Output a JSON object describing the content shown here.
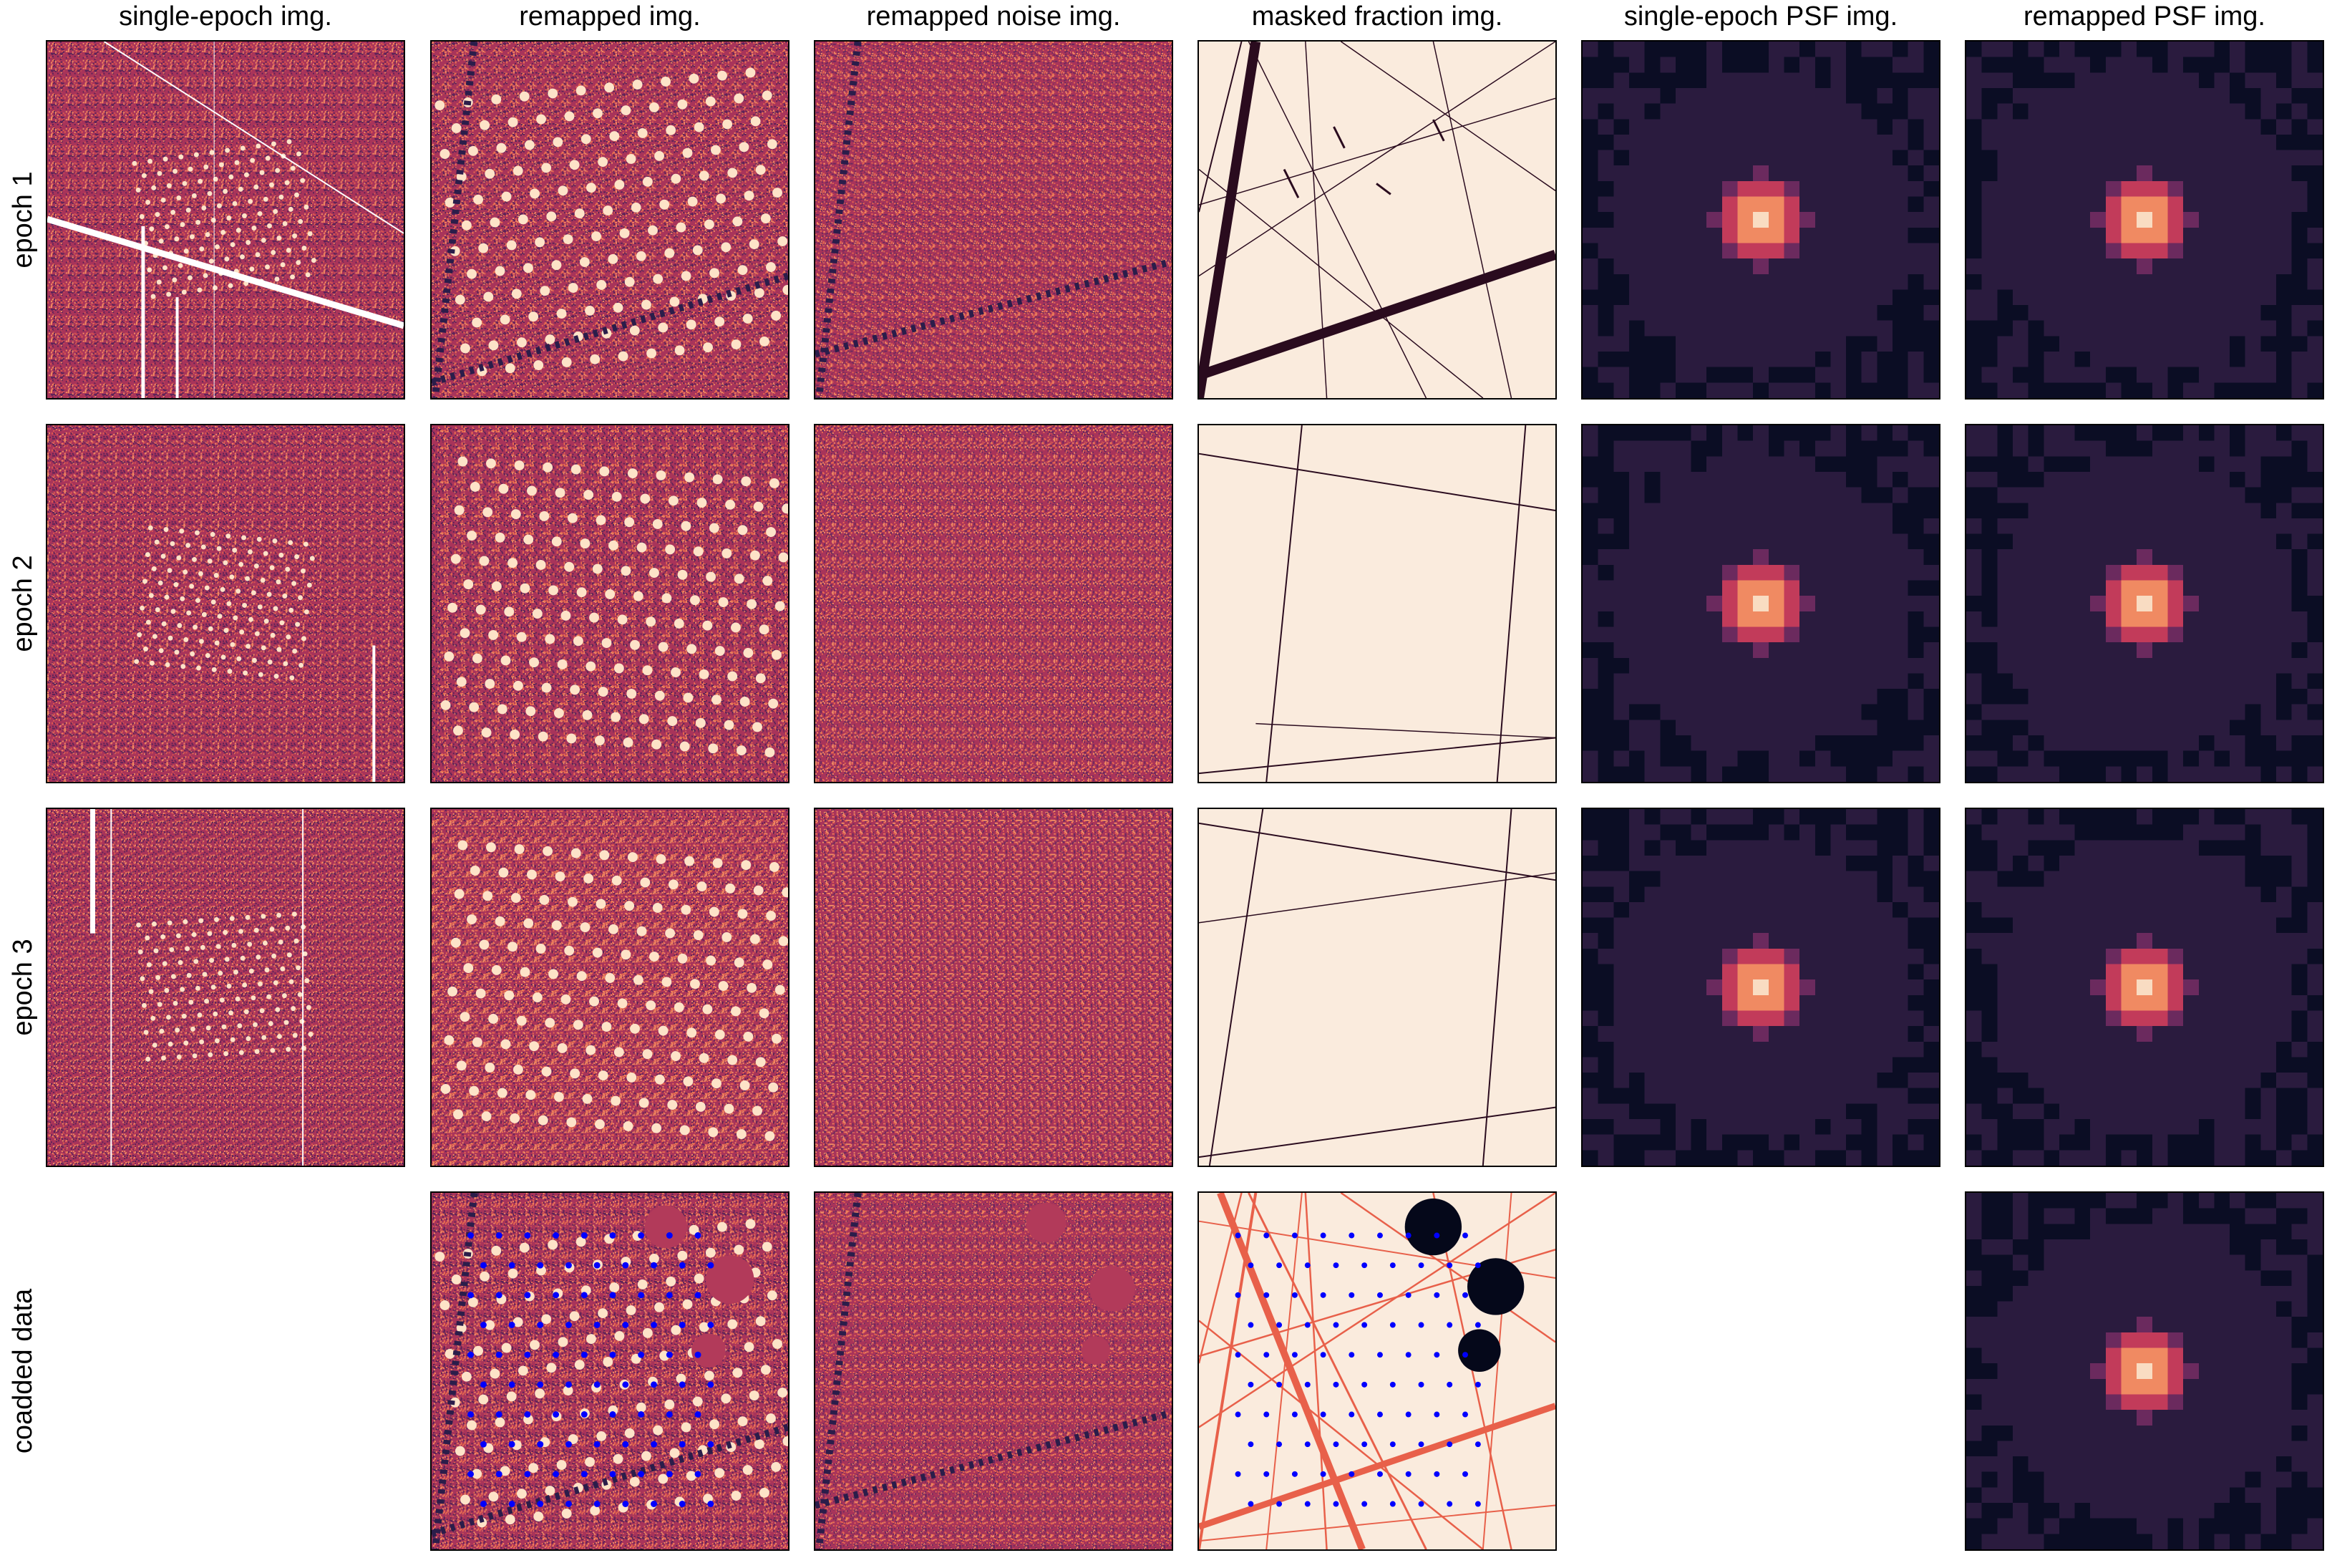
{
  "columns": [
    {
      "title": "single-epoch img.",
      "kind": "img"
    },
    {
      "title": "remapped img.",
      "kind": "remap"
    },
    {
      "title": "remapped noise img.",
      "kind": "noise"
    },
    {
      "title": "masked fraction img.",
      "kind": "mask"
    },
    {
      "title": "single-epoch PSF img.",
      "kind": "psf"
    },
    {
      "title": "remapped PSF img.",
      "kind": "psf"
    }
  ],
  "rows": [
    {
      "label": "epoch 1",
      "panels": [
        1,
        1,
        1,
        1,
        1,
        1
      ]
    },
    {
      "label": "epoch 2",
      "panels": [
        1,
        1,
        1,
        1,
        1,
        1
      ]
    },
    {
      "label": "epoch 3",
      "panels": [
        1,
        1,
        1,
        1,
        1,
        1
      ]
    },
    {
      "label": "coadded data",
      "panels": [
        0,
        1,
        1,
        1,
        0,
        1
      ]
    }
  ],
  "chart_data": {
    "type": "heatmap",
    "description_layout": "4x6 image grid",
    "colormaps": {
      "image": [
        "#2b1d4a",
        "#6b2a5e",
        "#b23a5a",
        "#e8694e",
        "#f6b48f",
        "#faebdd"
      ],
      "psf": [
        "#0b0d24",
        "#2a1b3e",
        "#6b2a5e",
        "#c23b5a",
        "#f08a62",
        "#f9dcc2"
      ],
      "mask_background": "#faebdd",
      "mask_line": "#2a0b1e",
      "coadd_mask_line": "#e8604a",
      "object_marker": "#0000ff"
    },
    "panels_present": {
      "epoch 1": [
        "single-epoch img.",
        "remapped img.",
        "remapped noise img.",
        "masked fraction img.",
        "single-epoch PSF img.",
        "remapped PSF img."
      ],
      "epoch 2": [
        "single-epoch img.",
        "remapped img.",
        "remapped noise img.",
        "masked fraction img.",
        "single-epoch PSF img.",
        "remapped PSF img."
      ],
      "epoch 3": [
        "single-epoch img.",
        "remapped img.",
        "remapped noise img.",
        "masked fraction img.",
        "single-epoch PSF img.",
        "remapped PSF img."
      ],
      "coadded data": [
        "remapped img.",
        "remapped noise img.",
        "masked fraction img.",
        "remapped PSF img."
      ]
    },
    "axes": {
      "ticks": false,
      "grid": false
    }
  }
}
